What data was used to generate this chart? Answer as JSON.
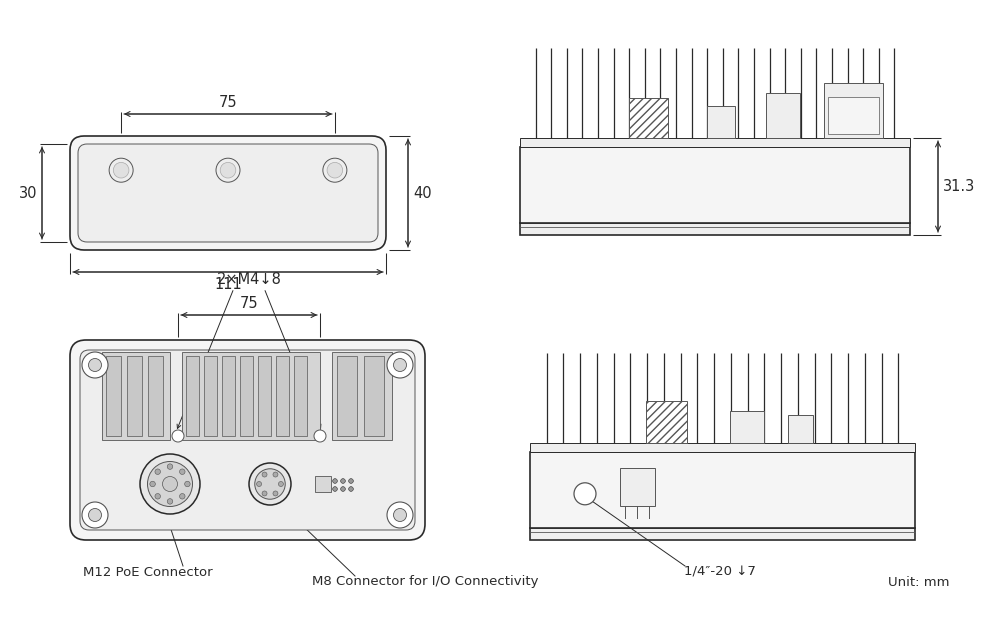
{
  "bg_color": "#ffffff",
  "lc": "#2a2a2a",
  "lc_inner": "#555555",
  "lc_dim": "#2a2a2a",
  "fill_body": "#f5f5f5",
  "fill_inner": "#eeeeee",
  "fill_slot": "#d5d5d5",
  "fill_dark": "#c8c8c8",
  "unit_text": "Unit: mm",
  "dim_75_top": "75",
  "dim_111": "111",
  "dim_30": "30",
  "dim_40": "40",
  "dim_31_3": "31.3",
  "dim_75_bottom": "75",
  "label_m12": "M12 PoE Connector",
  "label_m8": "M8 Connector for I/O Connectivity",
  "label_mount": "2×M4↓8",
  "label_screw": "1/4″-20 ↓7"
}
